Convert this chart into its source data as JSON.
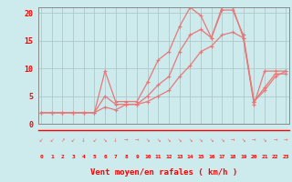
{
  "xlabel": "Vent moyen/en rafales ( km/h )",
  "bg_color": "#cdeaed",
  "grid_color": "#b0c8ca",
  "line_color": "#e87878",
  "arrow_line_color": "#cc4444",
  "x_ticks": [
    0,
    1,
    2,
    3,
    4,
    5,
    6,
    7,
    8,
    9,
    10,
    11,
    12,
    13,
    14,
    15,
    16,
    17,
    18,
    19,
    20,
    21,
    22,
    23
  ],
  "ylim": [
    0,
    21
  ],
  "xlim": [
    -0.3,
    23.3
  ],
  "line1_y": [
    2,
    2,
    2,
    2,
    2,
    2,
    9.5,
    4,
    4,
    4,
    7.5,
    11.5,
    13,
    17.5,
    21,
    19.5,
    15.5,
    21,
    21,
    15.5,
    3.5,
    9.5,
    9.5,
    9.5
  ],
  "line2_y": [
    2,
    2,
    2,
    2,
    2,
    2,
    5,
    3.5,
    3.5,
    3.5,
    5,
    7,
    8.5,
    13,
    16,
    17,
    15.5,
    20.5,
    20.5,
    16,
    4,
    6.5,
    9,
    9
  ],
  "line3_y": [
    2,
    2,
    2,
    2,
    2,
    2,
    3,
    2.5,
    3.5,
    3.5,
    4,
    5,
    6,
    8.5,
    10.5,
    13,
    14,
    16,
    16.5,
    15.5,
    4,
    6,
    8.5,
    9.5
  ],
  "arrow_symbols": [
    "↙",
    "↙",
    "↗",
    "↙",
    "↓",
    "↙",
    "↘",
    "↓",
    "→",
    "→",
    "↘",
    "↘",
    "↘",
    "↘",
    "↘",
    "↘",
    "↘",
    "↘",
    "→",
    "↘",
    "→",
    "↘",
    "→",
    "→"
  ]
}
